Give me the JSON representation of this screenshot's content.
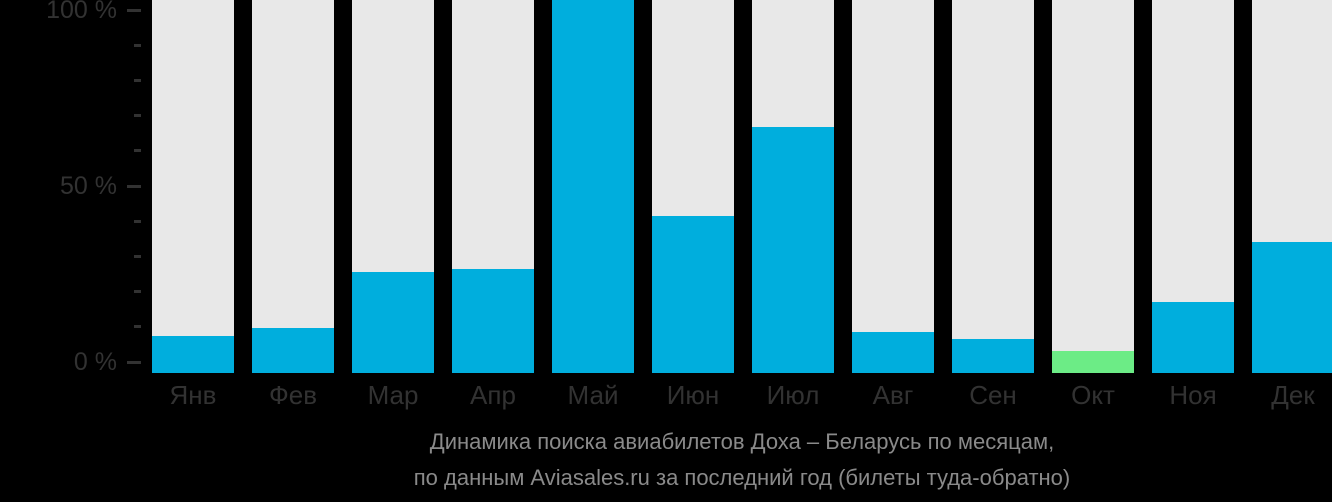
{
  "colors": {
    "background": "#000000",
    "bar_track": "#e8e8e8",
    "bar_default": "#00aedd",
    "bar_highlight": "#6cec86",
    "axis_text": "#323232",
    "tick": "#323232",
    "caption_text": "#8a8a8a"
  },
  "chart_data": {
    "type": "bar",
    "title": "Динамика поиска авиабилетов Доха – Беларусь по месяцам,",
    "subtitle": "по данным Aviasales.ru за последний год (билеты туда-обратно)",
    "categories": [
      "Янв",
      "Фев",
      "Мар",
      "Апр",
      "Май",
      "Июн",
      "Июл",
      "Авг",
      "Сен",
      "Окт",
      "Ноя",
      "Дек"
    ],
    "category_keys": [
      "jan",
      "feb",
      "mar",
      "apr",
      "may",
      "jun",
      "jul",
      "aug",
      "sep",
      "oct",
      "nov",
      "dec"
    ],
    "values": [
      10,
      12,
      27,
      28,
      100,
      42,
      66,
      11,
      9,
      6,
      19,
      35
    ],
    "unit": "%",
    "highlight_index": 9,
    "ylim": [
      0,
      100
    ],
    "y_major_ticks": [
      {
        "value": 0,
        "label": "0 %"
      },
      {
        "value": 50,
        "label": "50 %"
      },
      {
        "value": 100,
        "label": "100 %"
      }
    ],
    "y_minor_tick_step": 10,
    "grid": false,
    "legend": false
  }
}
